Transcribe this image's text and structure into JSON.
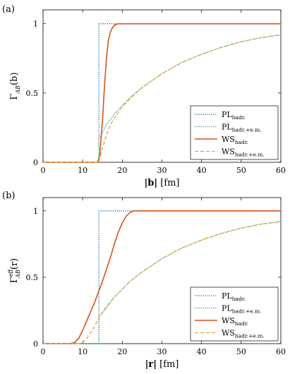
{
  "chart_data": [
    {
      "type": "line",
      "panel_label": "(a)",
      "ylabel": {
        "main": "Γ",
        "sub": "AB",
        "rest": "(b)"
      },
      "xlabel": {
        "main": "|b|",
        "rest": " [fm]"
      },
      "xlim": [
        0,
        60
      ],
      "ylim": [
        0,
        1.1
      ],
      "xticks": [
        0,
        10,
        20,
        30,
        40,
        50,
        60
      ],
      "yticks": [
        0,
        0.5,
        1
      ],
      "ytick_labels": [
        "0",
        "0.5",
        "1"
      ],
      "legend_position": "bottom-right",
      "series": [
        {
          "name": "PL",
          "sub": "hadr.",
          "color": "#1f77b4",
          "style": "dotted",
          "x": [
            0,
            14.1,
            14.1,
            60
          ],
          "y": [
            0,
            0,
            1,
            1
          ]
        },
        {
          "name": "PL",
          "sub": "hadr.+e.m.",
          "color": "#17a2a0",
          "style": "dotted",
          "x": [
            0,
            14.1,
            14.1,
            16,
            18,
            20,
            22,
            25,
            30,
            35,
            40,
            45,
            50,
            55,
            60
          ],
          "y": [
            0,
            0,
            0.17,
            0.27,
            0.35,
            0.41,
            0.47,
            0.54,
            0.64,
            0.72,
            0.78,
            0.83,
            0.87,
            0.9,
            0.92
          ]
        },
        {
          "name": "WS",
          "sub": "hadr.",
          "color": "#d95319",
          "style": "solid",
          "x": [
            0,
            13.8,
            14.3,
            15,
            15.5,
            16,
            16.5,
            17,
            17.5,
            18,
            19,
            20,
            60
          ],
          "y": [
            0,
            0,
            0.05,
            0.3,
            0.55,
            0.75,
            0.88,
            0.94,
            0.97,
            0.99,
            1,
            1,
            1
          ]
        },
        {
          "name": "WS",
          "sub": "hadr.+e.m.",
          "color": "#e8a33d",
          "style": "dashed",
          "x": [
            0,
            14,
            14.5,
            15,
            16,
            17,
            18,
            20,
            22,
            25,
            30,
            35,
            40,
            45,
            50,
            55,
            60
          ],
          "y": [
            0,
            0,
            0.05,
            0.1,
            0.2,
            0.27,
            0.32,
            0.4,
            0.46,
            0.54,
            0.64,
            0.72,
            0.78,
            0.83,
            0.87,
            0.9,
            0.92
          ]
        }
      ]
    },
    {
      "type": "line",
      "panel_label": "(b)",
      "ylabel": {
        "main": "Γ",
        "sub": "AB",
        "sup": "eff",
        "rest": "(r)"
      },
      "xlabel": {
        "main": "|r|",
        "rest": " [fm]"
      },
      "xlim": [
        0,
        60
      ],
      "ylim": [
        0,
        1.1
      ],
      "xticks": [
        0,
        10,
        20,
        30,
        40,
        50,
        60
      ],
      "yticks": [
        0,
        0.5,
        1
      ],
      "ytick_labels": [
        "0",
        "0.5",
        "1"
      ],
      "legend_position": "bottom-right",
      "series": [
        {
          "name": "PL",
          "sub": "hadr.",
          "color": "#1f77b4",
          "style": "dotted",
          "x": [
            0,
            14.1,
            14.1,
            60
          ],
          "y": [
            0,
            0,
            1,
            1
          ]
        },
        {
          "name": "PL",
          "sub": "hadr.+e.m.",
          "color": "#17a2a0",
          "style": "dotted",
          "x": [
            0,
            14.1,
            14.1,
            16,
            18,
            20,
            22,
            25,
            30,
            35,
            40,
            45,
            50,
            55,
            60
          ],
          "y": [
            0,
            0,
            0.2,
            0.27,
            0.35,
            0.41,
            0.47,
            0.54,
            0.64,
            0.72,
            0.78,
            0.83,
            0.87,
            0.9,
            0.92
          ]
        },
        {
          "name": "WS",
          "sub": "hadr.",
          "color": "#d95319",
          "style": "solid",
          "x": [
            0,
            7,
            8,
            9,
            10,
            11,
            12,
            13,
            14,
            15,
            16,
            17,
            18,
            19,
            20,
            21,
            22,
            23,
            24,
            60
          ],
          "y": [
            0,
            0,
            0.01,
            0.04,
            0.1,
            0.17,
            0.24,
            0.31,
            0.39,
            0.47,
            0.56,
            0.65,
            0.75,
            0.84,
            0.91,
            0.96,
            0.99,
            1,
            1,
            1
          ]
        },
        {
          "name": "WS",
          "sub": "hadr.+e.m.",
          "color": "#e8a33d",
          "style": "dashed",
          "x": [
            0,
            9,
            10,
            11,
            12,
            13,
            14,
            15,
            16,
            18,
            20,
            22,
            25,
            30,
            35,
            40,
            45,
            50,
            55,
            60
          ],
          "y": [
            0,
            0,
            0.01,
            0.04,
            0.08,
            0.13,
            0.19,
            0.24,
            0.28,
            0.35,
            0.41,
            0.47,
            0.54,
            0.64,
            0.72,
            0.78,
            0.83,
            0.87,
            0.9,
            0.92
          ]
        }
      ]
    }
  ]
}
